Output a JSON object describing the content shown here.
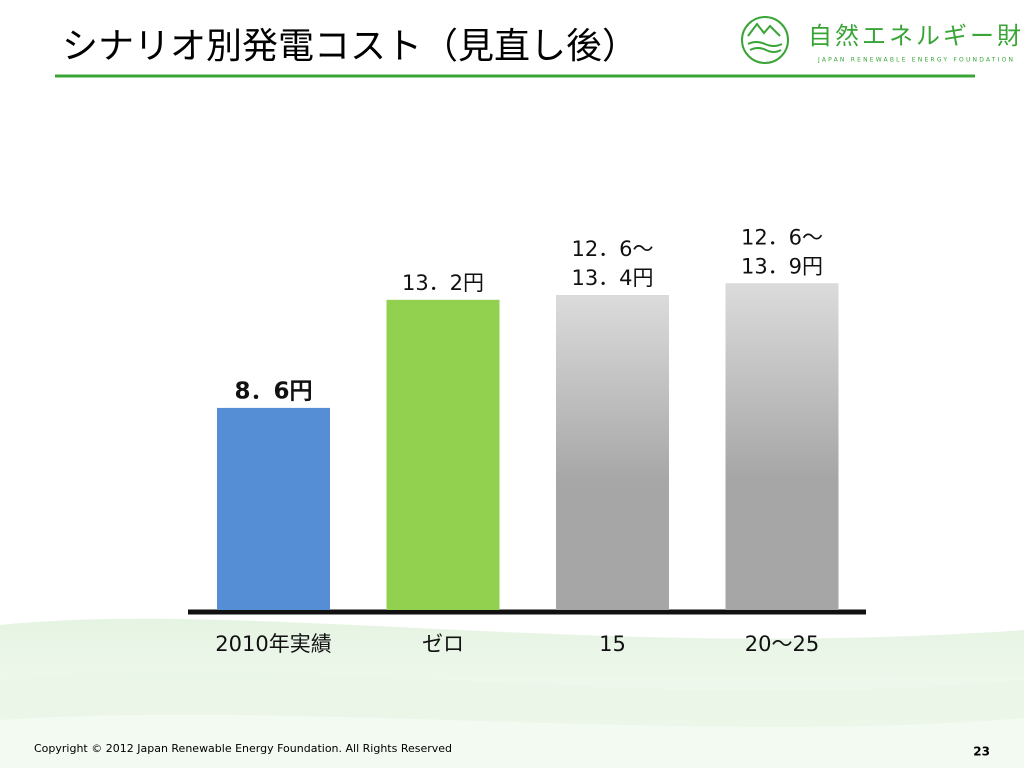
{
  "header": {
    "title": "シナリオ別発電コスト（見直し後）",
    "logo_name": "自然エネルギー財団",
    "logo_subtitle": "JAPAN RENEWABLE ENERGY FOUNDATION"
  },
  "chart_data": {
    "type": "bar",
    "categories": [
      "2010年実績",
      "ゼロ",
      "15",
      "20～25"
    ],
    "values": [
      8.6,
      13.2,
      13.4,
      13.9
    ],
    "value_labels": [
      "8．6円",
      "13．2円",
      [
        "12．6～",
        "13．4円"
      ],
      [
        "12．6～",
        "13．9円"
      ]
    ],
    "colors": [
      "#558ed5",
      "#92d050",
      "#a6a6a6",
      "#a6a6a6"
    ],
    "gradient": [
      false,
      false,
      true,
      true
    ],
    "ylim": [
      0,
      14.5
    ]
  },
  "footer": {
    "copyright": "Copyright © 2012 Japan Renewable Energy Foundation. All Rights Reserved",
    "page_number": 23
  }
}
